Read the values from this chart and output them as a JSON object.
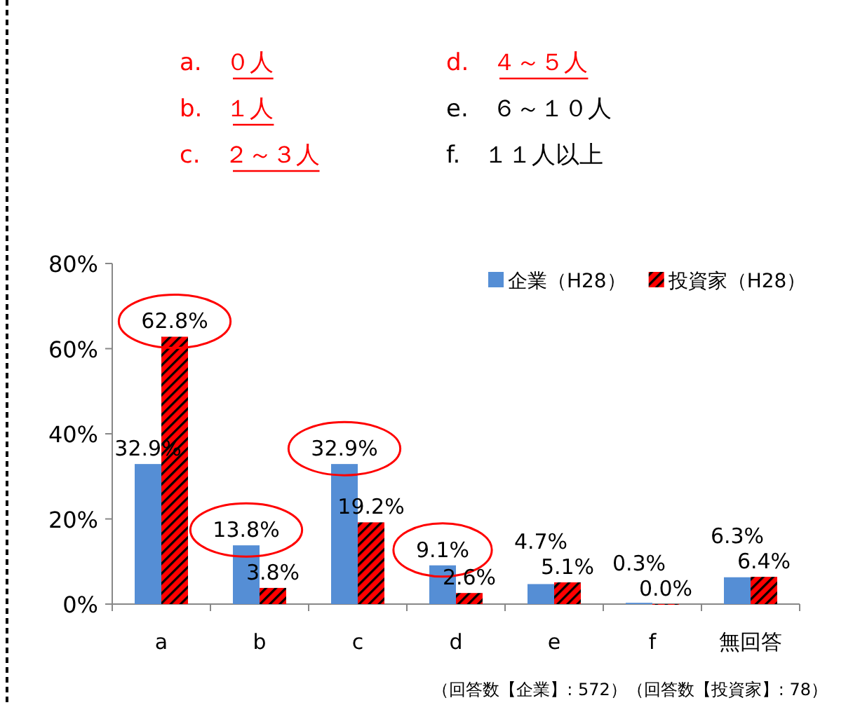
{
  "chart_data": {
    "type": "bar",
    "categories": [
      "a",
      "b",
      "c",
      "d",
      "e",
      "f",
      "無回答"
    ],
    "series": [
      {
        "name": "企業（H28）",
        "color": "#558ed5",
        "values": [
          32.9,
          13.8,
          32.9,
          9.1,
          4.7,
          0.3,
          6.3
        ]
      },
      {
        "name": "投資家（H28）",
        "color": "#ff0000",
        "values": [
          62.8,
          3.8,
          19.2,
          2.6,
          5.1,
          0.0,
          6.4
        ]
      }
    ],
    "ylim": [
      0,
      80
    ],
    "yticks": [
      {
        "value": 0,
        "label": "0%"
      },
      {
        "value": 20,
        "label": "20%"
      },
      {
        "value": 40,
        "label": "40%"
      },
      {
        "value": 60,
        "label": "60%"
      },
      {
        "value": 80,
        "label": "80%"
      }
    ],
    "value_labels": [
      [
        "32.9%",
        "13.8%",
        "32.9%",
        "9.1%",
        "4.7%",
        "0.3%",
        "6.3%"
      ],
      [
        "62.8%",
        "3.8%",
        "19.2%",
        "2.6%",
        "5.1%",
        "0.0%",
        "6.4%"
      ]
    ],
    "legend": "top right",
    "grid": false,
    "annotations": [
      "a.　０人",
      "b.　１人",
      "c.　２～３人",
      "d.　４～５人",
      "e.　６～１０人",
      "f.　１１人以上",
      "（回答数【企業】: 572）（回答数【投資家】: 78）"
    ]
  }
}
